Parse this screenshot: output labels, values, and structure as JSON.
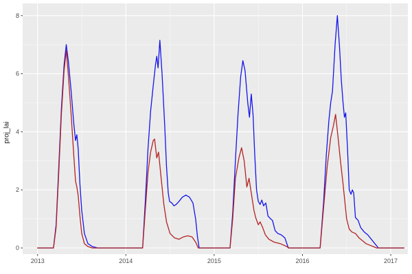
{
  "figure": {
    "background_color": "#FFFFFF",
    "panel_background_color": "#EBEBEB",
    "grid_major_color": "#FFFFFF",
    "grid_minor_color": "#FFFFFF",
    "tick_label_color": "#4D4D4D",
    "axis_title_color": "#1A1A1A"
  },
  "chart_data": {
    "type": "line",
    "title": "",
    "xlabel": "",
    "ylabel": "proj_lai",
    "grid": true,
    "legend_position": "none",
    "xlim": [
      2012.831,
      2017.194
    ],
    "ylim": [
      -0.212,
      8.42
    ],
    "x_ticks": {
      "values": [
        2013,
        2014,
        2015,
        2016,
        2017
      ],
      "labels": [
        "2013",
        "2014",
        "2015",
        "2016",
        "2017"
      ]
    },
    "x_minor_ticks": [
      2013.5,
      2014.5,
      2015.5,
      2016.5
    ],
    "y_ticks": {
      "values": [
        0,
        2,
        4,
        6,
        8
      ],
      "labels": [
        "0",
        "2",
        "4",
        "6",
        "8"
      ]
    },
    "y_minor_ticks": [
      1,
      3,
      5,
      7
    ],
    "series": [
      {
        "name": "blue-line",
        "color": "#1414EB",
        "points": [
          [
            2013.0,
            0
          ],
          [
            2013.18,
            0
          ],
          [
            2013.21,
            0.8
          ],
          [
            2013.24,
            2.8
          ],
          [
            2013.27,
            4.8
          ],
          [
            2013.3,
            6.3
          ],
          [
            2013.325,
            7.0
          ],
          [
            2013.35,
            6.4
          ],
          [
            2013.38,
            5.4
          ],
          [
            2013.41,
            4.3
          ],
          [
            2013.43,
            3.7
          ],
          [
            2013.445,
            3.9
          ],
          [
            2013.46,
            3.4
          ],
          [
            2013.48,
            2.2
          ],
          [
            2013.5,
            1.3
          ],
          [
            2013.53,
            0.5
          ],
          [
            2013.57,
            0.15
          ],
          [
            2013.62,
            0.05
          ],
          [
            2013.68,
            0
          ],
          [
            2014.19,
            0
          ],
          [
            2014.22,
            1.6
          ],
          [
            2014.25,
            3.4
          ],
          [
            2014.28,
            4.7
          ],
          [
            2014.31,
            5.6
          ],
          [
            2014.335,
            6.3
          ],
          [
            2014.35,
            6.6
          ],
          [
            2014.365,
            6.2
          ],
          [
            2014.385,
            7.15
          ],
          [
            2014.41,
            6.0
          ],
          [
            2014.44,
            4.2
          ],
          [
            2014.46,
            2.8
          ],
          [
            2014.48,
            1.9
          ],
          [
            2014.495,
            1.6
          ],
          [
            2014.52,
            1.55
          ],
          [
            2014.545,
            1.45
          ],
          [
            2014.57,
            1.5
          ],
          [
            2014.6,
            1.6
          ],
          [
            2014.64,
            1.75
          ],
          [
            2014.68,
            1.82
          ],
          [
            2014.72,
            1.75
          ],
          [
            2014.76,
            1.55
          ],
          [
            2014.79,
            1.0
          ],
          [
            2014.81,
            0.4
          ],
          [
            2014.83,
            0
          ],
          [
            2015.18,
            0
          ],
          [
            2015.21,
            1.2
          ],
          [
            2015.24,
            3.0
          ],
          [
            2015.27,
            4.6
          ],
          [
            2015.3,
            5.9
          ],
          [
            2015.325,
            6.45
          ],
          [
            2015.35,
            6.1
          ],
          [
            2015.38,
            5.0
          ],
          [
            2015.4,
            4.5
          ],
          [
            2015.42,
            5.3
          ],
          [
            2015.44,
            4.6
          ],
          [
            2015.46,
            3.2
          ],
          [
            2015.48,
            2.0
          ],
          [
            2015.5,
            1.6
          ],
          [
            2015.52,
            1.5
          ],
          [
            2015.54,
            1.65
          ],
          [
            2015.56,
            1.45
          ],
          [
            2015.585,
            1.55
          ],
          [
            2015.61,
            1.1
          ],
          [
            2015.64,
            1.0
          ],
          [
            2015.66,
            0.95
          ],
          [
            2015.69,
            0.6
          ],
          [
            2015.72,
            0.5
          ],
          [
            2015.76,
            0.45
          ],
          [
            2015.8,
            0.35
          ],
          [
            2015.84,
            0
          ],
          [
            2016.2,
            0
          ],
          [
            2016.24,
            1.6
          ],
          [
            2016.27,
            3.2
          ],
          [
            2016.3,
            4.4
          ],
          [
            2016.32,
            5.0
          ],
          [
            2016.34,
            5.4
          ],
          [
            2016.37,
            7.0
          ],
          [
            2016.395,
            8.0
          ],
          [
            2016.42,
            6.9
          ],
          [
            2016.44,
            5.8
          ],
          [
            2016.46,
            5.0
          ],
          [
            2016.475,
            4.5
          ],
          [
            2016.49,
            4.65
          ],
          [
            2016.51,
            3.4
          ],
          [
            2016.53,
            2.0
          ],
          [
            2016.55,
            1.85
          ],
          [
            2016.565,
            2.0
          ],
          [
            2016.58,
            1.9
          ],
          [
            2016.6,
            1.05
          ],
          [
            2016.63,
            0.95
          ],
          [
            2016.66,
            0.7
          ],
          [
            2016.7,
            0.55
          ],
          [
            2016.74,
            0.45
          ],
          [
            2016.78,
            0.3
          ],
          [
            2016.82,
            0.15
          ],
          [
            2016.86,
            0
          ],
          [
            2017.15,
            0
          ]
        ]
      },
      {
        "name": "red-line",
        "color": "#B22222",
        "points": [
          [
            2013.0,
            0
          ],
          [
            2013.18,
            0
          ],
          [
            2013.21,
            0.7
          ],
          [
            2013.24,
            2.6
          ],
          [
            2013.27,
            4.6
          ],
          [
            2013.3,
            6.1
          ],
          [
            2013.325,
            6.8
          ],
          [
            2013.35,
            5.9
          ],
          [
            2013.38,
            4.6
          ],
          [
            2013.41,
            3.2
          ],
          [
            2013.43,
            2.3
          ],
          [
            2013.445,
            2.1
          ],
          [
            2013.46,
            1.8
          ],
          [
            2013.48,
            1.1
          ],
          [
            2013.5,
            0.5
          ],
          [
            2013.53,
            0.15
          ],
          [
            2013.57,
            0.05
          ],
          [
            2013.62,
            0
          ],
          [
            2014.19,
            0
          ],
          [
            2014.22,
            1.3
          ],
          [
            2014.25,
            2.6
          ],
          [
            2014.28,
            3.3
          ],
          [
            2014.31,
            3.7
          ],
          [
            2014.325,
            3.75
          ],
          [
            2014.35,
            3.1
          ],
          [
            2014.37,
            3.3
          ],
          [
            2014.4,
            2.4
          ],
          [
            2014.43,
            1.5
          ],
          [
            2014.46,
            0.9
          ],
          [
            2014.5,
            0.5
          ],
          [
            2014.55,
            0.35
          ],
          [
            2014.6,
            0.3
          ],
          [
            2014.65,
            0.38
          ],
          [
            2014.7,
            0.42
          ],
          [
            2014.75,
            0.38
          ],
          [
            2014.79,
            0.2
          ],
          [
            2014.82,
            0
          ],
          [
            2015.18,
            0
          ],
          [
            2015.21,
            1.0
          ],
          [
            2015.24,
            2.4
          ],
          [
            2015.28,
            3.1
          ],
          [
            2015.31,
            3.45
          ],
          [
            2015.34,
            3.0
          ],
          [
            2015.37,
            2.1
          ],
          [
            2015.395,
            2.4
          ],
          [
            2015.42,
            1.9
          ],
          [
            2015.45,
            1.3
          ],
          [
            2015.47,
            1.05
          ],
          [
            2015.5,
            0.8
          ],
          [
            2015.52,
            0.9
          ],
          [
            2015.55,
            0.7
          ],
          [
            2015.58,
            0.45
          ],
          [
            2015.62,
            0.3
          ],
          [
            2015.68,
            0.2
          ],
          [
            2015.75,
            0.15
          ],
          [
            2015.8,
            0.08
          ],
          [
            2015.85,
            0
          ],
          [
            2016.2,
            0
          ],
          [
            2016.24,
            1.4
          ],
          [
            2016.28,
            2.8
          ],
          [
            2016.32,
            3.8
          ],
          [
            2016.35,
            4.2
          ],
          [
            2016.375,
            4.6
          ],
          [
            2016.4,
            3.9
          ],
          [
            2016.43,
            3.0
          ],
          [
            2016.46,
            2.2
          ],
          [
            2016.48,
            1.6
          ],
          [
            2016.5,
            1.0
          ],
          [
            2016.53,
            0.65
          ],
          [
            2016.56,
            0.55
          ],
          [
            2016.6,
            0.5
          ],
          [
            2016.64,
            0.35
          ],
          [
            2016.68,
            0.25
          ],
          [
            2016.72,
            0.15
          ],
          [
            2016.76,
            0.1
          ],
          [
            2016.8,
            0.05
          ],
          [
            2016.84,
            0
          ],
          [
            2017.15,
            0
          ]
        ]
      }
    ]
  }
}
